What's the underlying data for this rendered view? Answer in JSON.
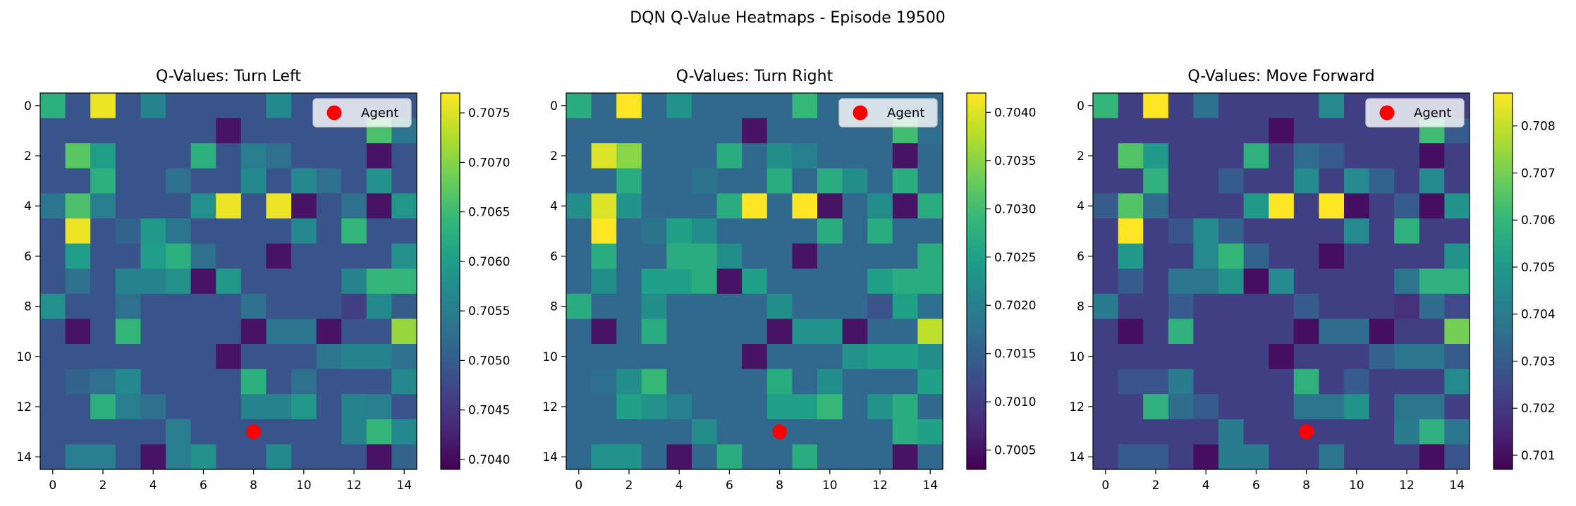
{
  "figure": {
    "title": "DQN Q-Value Heatmaps - Episode 19500"
  },
  "colors": {
    "viridis": [
      "#440154",
      "#482878",
      "#3e4989",
      "#31688e",
      "#26828e",
      "#1f9e89",
      "#35b779",
      "#6ece58",
      "#b5de2b",
      "#fde725"
    ],
    "agent": "#ff0000",
    "legend_bg": "#ffffff",
    "legend_border": "#cccccc"
  },
  "chart_data": [
    {
      "type": "heatmap",
      "title": "Q-Values: Turn Left",
      "grid_size": 15,
      "x_ticks": [
        0,
        2,
        4,
        6,
        8,
        10,
        12,
        14
      ],
      "y_ticks": [
        0,
        2,
        4,
        6,
        8,
        10,
        12,
        14
      ],
      "vmin": 0.7039,
      "vmax": 0.7077,
      "colorbar_ticks": [
        0.704,
        0.7045,
        0.705,
        0.7055,
        0.706,
        0.7065,
        0.707,
        0.7075
      ],
      "colorbar_tick_labels": [
        "0.7040",
        "0.7045",
        "0.7050",
        "0.7055",
        "0.7060",
        "0.7065",
        "0.7070",
        "0.7075"
      ],
      "agent": {
        "x": 8,
        "y": 13,
        "label": "Agent"
      },
      "legend_position": "upper right",
      "values": [
        [
          0.7063,
          0.7049,
          0.7076,
          0.7049,
          0.7056,
          0.7049,
          0.7049,
          0.7049,
          0.7049,
          0.7057,
          0.7049,
          0.7049,
          0.7049,
          0.7049,
          0.7049
        ],
        [
          0.7049,
          0.7049,
          0.7049,
          0.7049,
          0.7049,
          0.7049,
          0.7049,
          0.7041,
          0.7049,
          0.7049,
          0.7049,
          0.7049,
          0.7049,
          0.7066,
          0.7054
        ],
        [
          0.7049,
          0.7067,
          0.706,
          0.7049,
          0.7049,
          0.7049,
          0.7063,
          0.7049,
          0.7055,
          0.7053,
          0.7049,
          0.7049,
          0.7049,
          0.7041,
          0.7049
        ],
        [
          0.7049,
          0.7049,
          0.7063,
          0.7049,
          0.7049,
          0.7053,
          0.7049,
          0.7049,
          0.7057,
          0.7049,
          0.7057,
          0.7053,
          0.7049,
          0.7058,
          0.7049
        ],
        [
          0.7054,
          0.7066,
          0.7055,
          0.7049,
          0.7049,
          0.7049,
          0.7058,
          0.7076,
          0.7049,
          0.7076,
          0.7041,
          0.7049,
          0.7053,
          0.7041,
          0.7059
        ],
        [
          0.7049,
          0.7076,
          0.7049,
          0.7051,
          0.7059,
          0.7054,
          0.7049,
          0.7049,
          0.7049,
          0.7049,
          0.7057,
          0.7049,
          0.7064,
          0.7049,
          0.7049
        ],
        [
          0.7049,
          0.706,
          0.7049,
          0.7049,
          0.706,
          0.7063,
          0.7053,
          0.7049,
          0.7049,
          0.7041,
          0.7049,
          0.7049,
          0.7049,
          0.7049,
          0.7058
        ],
        [
          0.7049,
          0.7053,
          0.7049,
          0.7056,
          0.7056,
          0.7058,
          0.7041,
          0.7059,
          0.7049,
          0.7049,
          0.7049,
          0.7049,
          0.7056,
          0.7064,
          0.7064
        ],
        [
          0.7058,
          0.7049,
          0.7049,
          0.7053,
          0.7049,
          0.7049,
          0.7049,
          0.7049,
          0.7053,
          0.7049,
          0.7049,
          0.7049,
          0.7046,
          0.7057,
          0.705
        ],
        [
          0.7049,
          0.7041,
          0.7049,
          0.7064,
          0.7049,
          0.7049,
          0.7049,
          0.7049,
          0.7041,
          0.7054,
          0.7054,
          0.7041,
          0.7049,
          0.7049,
          0.7071
        ],
        [
          0.7049,
          0.7049,
          0.7049,
          0.7049,
          0.7049,
          0.7049,
          0.7049,
          0.7041,
          0.7049,
          0.7049,
          0.7049,
          0.7054,
          0.7056,
          0.7056,
          0.7053
        ],
        [
          0.7049,
          0.7051,
          0.7053,
          0.7057,
          0.7049,
          0.7049,
          0.7049,
          0.7049,
          0.7063,
          0.7049,
          0.7053,
          0.7049,
          0.7049,
          0.7049,
          0.7057
        ],
        [
          0.7049,
          0.7049,
          0.7063,
          0.7055,
          0.7053,
          0.7049,
          0.7049,
          0.7049,
          0.7056,
          0.7056,
          0.7059,
          0.7049,
          0.7056,
          0.7055,
          0.7049
        ],
        [
          0.7049,
          0.7049,
          0.7049,
          0.7049,
          0.7049,
          0.7055,
          0.7049,
          0.7049,
          0.7049,
          0.7049,
          0.7049,
          0.7049,
          0.7056,
          0.7064,
          0.7057
        ],
        [
          0.7049,
          0.7055,
          0.7055,
          0.7049,
          0.7041,
          0.7055,
          0.7058,
          0.7049,
          0.7049,
          0.7057,
          0.7049,
          0.7049,
          0.7049,
          0.7041,
          0.7051
        ]
      ]
    },
    {
      "type": "heatmap",
      "title": "Q-Values: Turn Right",
      "grid_size": 15,
      "x_ticks": [
        0,
        2,
        4,
        6,
        8,
        10,
        12,
        14
      ],
      "y_ticks": [
        0,
        2,
        4,
        6,
        8,
        10,
        12,
        14
      ],
      "vmin": 0.7003,
      "vmax": 0.7042,
      "colorbar_ticks": [
        0.7005,
        0.701,
        0.7015,
        0.702,
        0.7025,
        0.703,
        0.7035,
        0.704
      ],
      "colorbar_tick_labels": [
        "0.7005",
        "0.7010",
        "0.7015",
        "0.7020",
        "0.7025",
        "0.7030",
        "0.7035",
        "0.7040"
      ],
      "agent": {
        "x": 8,
        "y": 13,
        "label": "Agent"
      },
      "legend_position": "upper right",
      "values": [
        [
          0.7027,
          0.7016,
          0.7042,
          0.7016,
          0.7023,
          0.7016,
          0.7016,
          0.7016,
          0.7016,
          0.7029,
          0.7016,
          0.7016,
          0.7016,
          0.7016,
          0.7016
        ],
        [
          0.7016,
          0.7016,
          0.7016,
          0.7016,
          0.7016,
          0.7016,
          0.7016,
          0.7005,
          0.7016,
          0.7016,
          0.7016,
          0.7016,
          0.7016,
          0.703,
          0.7017
        ],
        [
          0.7016,
          0.704,
          0.7035,
          0.7016,
          0.7016,
          0.7016,
          0.7027,
          0.7016,
          0.7022,
          0.702,
          0.7016,
          0.7016,
          0.7016,
          0.7005,
          0.7016
        ],
        [
          0.7016,
          0.7016,
          0.7027,
          0.7016,
          0.7016,
          0.7018,
          0.7016,
          0.7016,
          0.7027,
          0.7016,
          0.7027,
          0.7022,
          0.7016,
          0.7027,
          0.7016
        ],
        [
          0.7022,
          0.704,
          0.7023,
          0.7016,
          0.7016,
          0.7016,
          0.7027,
          0.7042,
          0.7016,
          0.7042,
          0.7005,
          0.7016,
          0.7022,
          0.7005,
          0.7027
        ],
        [
          0.7016,
          0.7042,
          0.7016,
          0.7018,
          0.7025,
          0.7022,
          0.7016,
          0.7016,
          0.7016,
          0.7016,
          0.7027,
          0.7016,
          0.7027,
          0.7016,
          0.7016
        ],
        [
          0.7016,
          0.7027,
          0.7016,
          0.7016,
          0.7027,
          0.7027,
          0.7022,
          0.7016,
          0.7016,
          0.7005,
          0.7016,
          0.7016,
          0.7016,
          0.7016,
          0.7027
        ],
        [
          0.7016,
          0.7022,
          0.7016,
          0.7025,
          0.7025,
          0.7027,
          0.7005,
          0.7025,
          0.7016,
          0.7016,
          0.7016,
          0.7016,
          0.7025,
          0.7027,
          0.7027
        ],
        [
          0.7027,
          0.7016,
          0.7016,
          0.7022,
          0.7016,
          0.7016,
          0.7016,
          0.7016,
          0.7022,
          0.7016,
          0.7016,
          0.7016,
          0.7013,
          0.7025,
          0.7017
        ],
        [
          0.7016,
          0.7005,
          0.7016,
          0.7027,
          0.7016,
          0.7016,
          0.7016,
          0.7016,
          0.7005,
          0.7023,
          0.7023,
          0.7005,
          0.7016,
          0.7016,
          0.7038
        ],
        [
          0.7016,
          0.7016,
          0.7016,
          0.7016,
          0.7016,
          0.7016,
          0.7016,
          0.7005,
          0.7016,
          0.7016,
          0.7016,
          0.7023,
          0.7025,
          0.7025,
          0.7022
        ],
        [
          0.7016,
          0.7017,
          0.7022,
          0.7029,
          0.7016,
          0.7016,
          0.7016,
          0.7016,
          0.7027,
          0.7016,
          0.7022,
          0.7016,
          0.7016,
          0.7016,
          0.7025
        ],
        [
          0.7016,
          0.7016,
          0.7025,
          0.7023,
          0.702,
          0.7016,
          0.7016,
          0.7016,
          0.7025,
          0.7025,
          0.7029,
          0.7016,
          0.7023,
          0.7027,
          0.7016
        ],
        [
          0.7016,
          0.7016,
          0.7016,
          0.7016,
          0.7016,
          0.7022,
          0.7016,
          0.7016,
          0.7016,
          0.7016,
          0.7016,
          0.7016,
          0.7016,
          0.7027,
          0.7025
        ],
        [
          0.7016,
          0.7023,
          0.7023,
          0.7016,
          0.7005,
          0.7016,
          0.7027,
          0.7016,
          0.7016,
          0.7027,
          0.7016,
          0.7016,
          0.7016,
          0.7005,
          0.7016
        ]
      ]
    },
    {
      "type": "heatmap",
      "title": "Q-Values: Move Forward",
      "grid_size": 15,
      "x_ticks": [
        0,
        2,
        4,
        6,
        8,
        10,
        12,
        14
      ],
      "y_ticks": [
        0,
        2,
        4,
        6,
        8,
        10,
        12,
        14
      ],
      "vmin": 0.7007,
      "vmax": 0.7087,
      "colorbar_ticks": [
        0.701,
        0.702,
        0.703,
        0.704,
        0.705,
        0.706,
        0.707,
        0.708
      ],
      "colorbar_tick_labels": [
        "0.701",
        "0.702",
        "0.703",
        "0.704",
        "0.705",
        "0.706",
        "0.707",
        "0.708"
      ],
      "agent": {
        "x": 8,
        "y": 13,
        "label": "Agent"
      },
      "legend_position": "upper right",
      "values": [
        [
          0.706,
          0.7022,
          0.7087,
          0.7022,
          0.7037,
          0.7022,
          0.7022,
          0.7022,
          0.7022,
          0.7045,
          0.7022,
          0.7022,
          0.7022,
          0.7022,
          0.7022
        ],
        [
          0.7022,
          0.7022,
          0.7022,
          0.7022,
          0.7022,
          0.7022,
          0.7022,
          0.701,
          0.7022,
          0.7022,
          0.7022,
          0.7022,
          0.7022,
          0.7062,
          0.703
        ],
        [
          0.7022,
          0.7065,
          0.705,
          0.7022,
          0.7022,
          0.7022,
          0.7058,
          0.7022,
          0.7035,
          0.703,
          0.7022,
          0.7022,
          0.7022,
          0.701,
          0.7022
        ],
        [
          0.7022,
          0.7022,
          0.7058,
          0.7022,
          0.7022,
          0.703,
          0.7022,
          0.7022,
          0.7045,
          0.7022,
          0.7045,
          0.7032,
          0.7022,
          0.7045,
          0.7022
        ],
        [
          0.703,
          0.7065,
          0.7035,
          0.7022,
          0.7022,
          0.7022,
          0.705,
          0.7087,
          0.7022,
          0.7087,
          0.701,
          0.7022,
          0.703,
          0.701,
          0.7048
        ],
        [
          0.7022,
          0.7087,
          0.7022,
          0.7028,
          0.7045,
          0.7032,
          0.7022,
          0.7022,
          0.7022,
          0.7022,
          0.7045,
          0.7022,
          0.7058,
          0.7022,
          0.7022
        ],
        [
          0.7022,
          0.705,
          0.7022,
          0.7022,
          0.7045,
          0.706,
          0.7032,
          0.7022,
          0.7022,
          0.701,
          0.7022,
          0.7022,
          0.7022,
          0.7022,
          0.7048
        ],
        [
          0.7022,
          0.703,
          0.7022,
          0.7038,
          0.7038,
          0.7048,
          0.701,
          0.7045,
          0.7022,
          0.7022,
          0.7022,
          0.7022,
          0.7038,
          0.7058,
          0.7058
        ],
        [
          0.704,
          0.7022,
          0.7022,
          0.703,
          0.7022,
          0.7022,
          0.7022,
          0.7022,
          0.703,
          0.7022,
          0.7022,
          0.7022,
          0.7018,
          0.7035,
          0.7025
        ],
        [
          0.7022,
          0.701,
          0.7022,
          0.7058,
          0.7022,
          0.7022,
          0.7022,
          0.7022,
          0.701,
          0.7035,
          0.7035,
          0.701,
          0.7022,
          0.7022,
          0.707
        ],
        [
          0.7022,
          0.7022,
          0.7022,
          0.7022,
          0.7022,
          0.7022,
          0.7022,
          0.701,
          0.7022,
          0.7022,
          0.7022,
          0.7032,
          0.7038,
          0.7038,
          0.703
        ],
        [
          0.7022,
          0.7028,
          0.7028,
          0.704,
          0.7022,
          0.7022,
          0.7022,
          0.7022,
          0.7058,
          0.7022,
          0.703,
          0.7022,
          0.7022,
          0.7022,
          0.7045
        ],
        [
          0.7022,
          0.7022,
          0.7058,
          0.7035,
          0.703,
          0.7022,
          0.7022,
          0.7022,
          0.7038,
          0.7038,
          0.7048,
          0.7022,
          0.7038,
          0.7038,
          0.7022
        ],
        [
          0.7022,
          0.7022,
          0.7022,
          0.7022,
          0.7022,
          0.704,
          0.7022,
          0.7022,
          0.7022,
          0.7022,
          0.7022,
          0.7022,
          0.704,
          0.7058,
          0.7038
        ],
        [
          0.7022,
          0.703,
          0.703,
          0.7022,
          0.701,
          0.704,
          0.704,
          0.7022,
          0.7022,
          0.7038,
          0.7022,
          0.7022,
          0.7022,
          0.701,
          0.7028
        ]
      ]
    }
  ]
}
